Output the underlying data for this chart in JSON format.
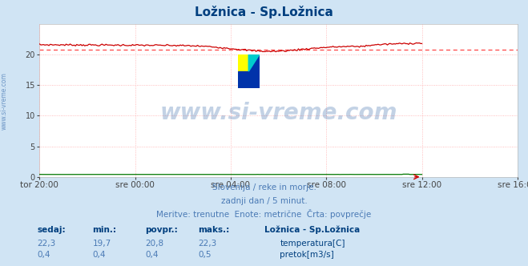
{
  "title": "Ložnica - Sp.Ložnica",
  "title_color": "#003f7f",
  "bg_color": "#d0e4f4",
  "plot_bg_color": "#ffffff",
  "grid_color": "#ffaaaa",
  "xlabel_ticks": [
    "tor 20:00",
    "sre 00:00",
    "sre 04:00",
    "sre 08:00",
    "sre 12:00",
    "sre 16:00"
  ],
  "tick_positions": [
    0,
    72,
    144,
    216,
    288,
    360
  ],
  "total_points": 289,
  "ylim": [
    0,
    25
  ],
  "yticks": [
    0,
    5,
    10,
    15,
    20
  ],
  "temp_avg": 20.8,
  "temp_min": 19.7,
  "temp_max": 22.3,
  "temp_current": 22.3,
  "flow_avg": 0.4,
  "flow_min": 0.38,
  "flow_max": 0.5,
  "flow_current": 0.4,
  "temp_color": "#cc0000",
  "flow_color": "#007700",
  "avg_line_color": "#ff4444",
  "watermark_color": "#3a6aaa",
  "watermark_alpha": 0.3,
  "footer_lines": [
    "Slovenija / reke in morje.",
    "zadnji dan / 5 minut.",
    "Meritve: trenutne  Enote: metrične  Črta: povprečje"
  ],
  "footer_color": "#4a7ab5",
  "table_header": [
    "sedaj:",
    "min.:",
    "povpr.:",
    "maks.:",
    "Ložnica - Sp.Ložnica"
  ],
  "table_row1": [
    "22,3",
    "19,7",
    "20,8",
    "22,3",
    "temperatura[C]"
  ],
  "table_row2": [
    "0,4",
    "0,4",
    "0,4",
    "0,5",
    "pretok[m3/s]"
  ],
  "table_color": "#003f7f",
  "table_value_color": "#4a7ab5",
  "ylabel_text": "www.si-vreme.com",
  "ylabel_color": "#4a7ab5",
  "figsize": [
    6.59,
    3.32
  ],
  "dpi": 100
}
